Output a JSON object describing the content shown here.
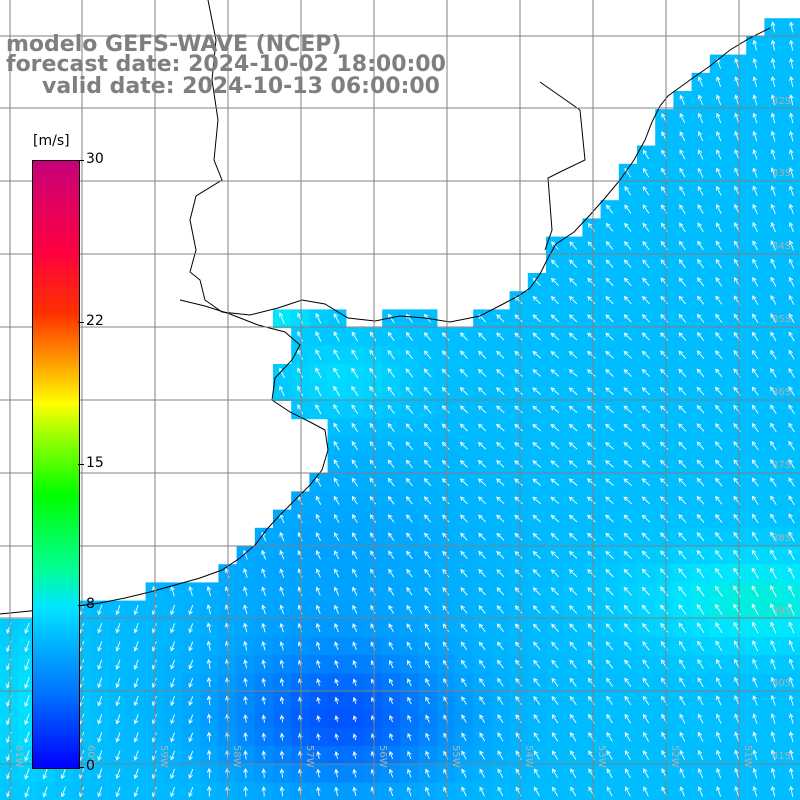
{
  "title": {
    "line1": "modelo GEFS-WAVE (NCEP)",
    "line2": "forecast date: 2024-10-02 18:00:00",
    "line3": "valid date: 2024-10-13 06:00:00"
  },
  "colorbar": {
    "unit": "[m/s]",
    "ticks": [
      "30",
      "22",
      "15",
      "8",
      "0"
    ],
    "tick_values": [
      30,
      22,
      15,
      8,
      0
    ],
    "range": [
      0,
      30
    ]
  },
  "map": {
    "region": "Rio de la Plata / South Atlantic",
    "lon_range": [
      -61,
      -50
    ],
    "lat_range": [
      -44,
      -30
    ],
    "lat_labels": [
      "32S",
      "33S",
      "34S",
      "35S",
      "36S",
      "37S",
      "38S",
      "39S",
      "40S",
      "41S"
    ],
    "lon_labels": [
      "61W",
      "60W",
      "59W",
      "58W",
      "57W",
      "56W",
      "55W",
      "54W",
      "53W",
      "52W",
      "51W"
    ],
    "land_color": "#ffffff",
    "grid_color": "#808080",
    "arrow_color": "#ffffff"
  }
}
